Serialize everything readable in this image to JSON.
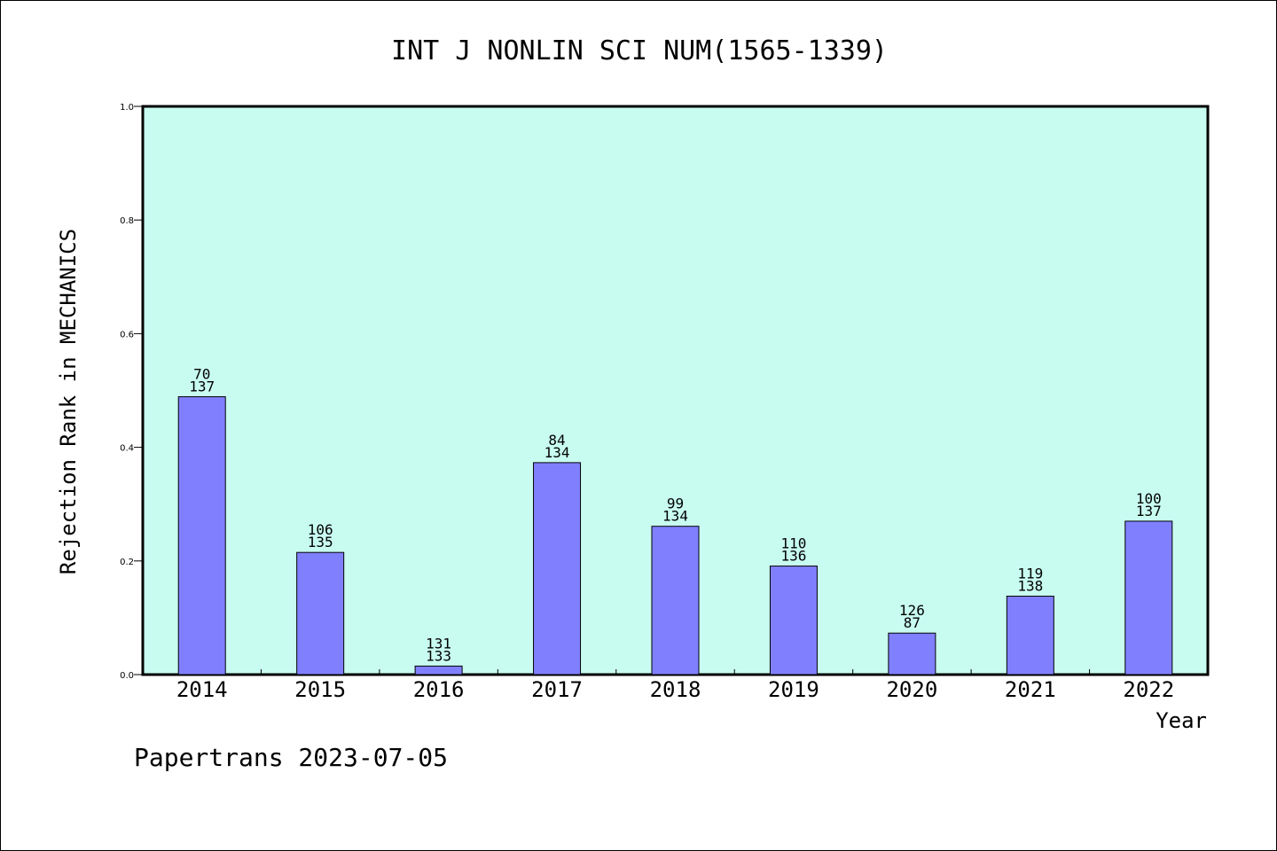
{
  "chart_data": {
    "type": "bar",
    "title": "INT J NONLIN SCI NUM(1565-1339)",
    "xlabel": "Year",
    "ylabel": "Rejection Rank in MECHANICS",
    "ylim": [
      0,
      1.0
    ],
    "yticks": [
      "0.0",
      "0.2",
      "0.4",
      "0.6",
      "0.8",
      "1.0"
    ],
    "categories": [
      "2014",
      "2015",
      "2016",
      "2017",
      "2018",
      "2019",
      "2020",
      "2021",
      "2022"
    ],
    "values": [
      0.489,
      0.215,
      0.015,
      0.373,
      0.261,
      0.191,
      0.073,
      0.138,
      0.27
    ],
    "labels_top": [
      "70",
      "106",
      "131",
      "84",
      "99",
      "110",
      "126",
      "119",
      "100"
    ],
    "labels_bottom": [
      "137",
      "135",
      "133",
      "134",
      "134",
      "136",
      "87",
      "138",
      "137"
    ],
    "grid": false,
    "plot_background": "#c8fcf0",
    "bar_color": "#8080ff"
  },
  "footer": "Papertrans 2023-07-05"
}
